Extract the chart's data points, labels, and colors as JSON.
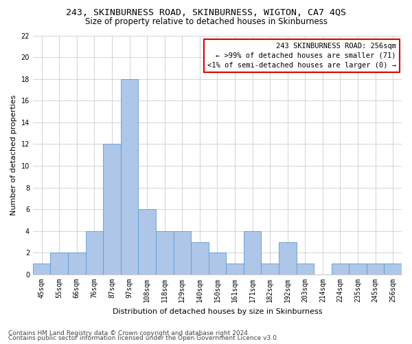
{
  "title": "243, SKINBURNESS ROAD, SKINBURNESS, WIGTON, CA7 4QS",
  "subtitle": "Size of property relative to detached houses in Skinburness",
  "xlabel": "Distribution of detached houses by size in Skinburness",
  "ylabel": "Number of detached properties",
  "categories": [
    "45sqm",
    "55sqm",
    "66sqm",
    "76sqm",
    "87sqm",
    "97sqm",
    "108sqm",
    "118sqm",
    "129sqm",
    "140sqm",
    "150sqm",
    "161sqm",
    "171sqm",
    "182sqm",
    "192sqm",
    "203sqm",
    "214sqm",
    "224sqm",
    "235sqm",
    "245sqm",
    "256sqm"
  ],
  "values": [
    1,
    2,
    2,
    4,
    12,
    18,
    6,
    4,
    4,
    3,
    2,
    1,
    4,
    1,
    3,
    1,
    0,
    1,
    1,
    1,
    1
  ],
  "bar_color": "#aec6e8",
  "bar_edge_color": "#5b9bd5",
  "annotation_line1": "243 SKINBURNESS ROAD: 256sqm",
  "annotation_line2": "← >99% of detached houses are smaller (71)",
  "annotation_line3": "<1% of semi-detached houses are larger (0) →",
  "annotation_box_color": "#dd0000",
  "footer1": "Contains HM Land Registry data © Crown copyright and database right 2024.",
  "footer2": "Contains public sector information licensed under the Open Government Licence v3.0.",
  "ylim": [
    0,
    22
  ],
  "yticks": [
    0,
    2,
    4,
    6,
    8,
    10,
    12,
    14,
    16,
    18,
    20,
    22
  ],
  "background_color": "#ffffff",
  "grid_color": "#cccccc",
  "title_fontsize": 9.5,
  "subtitle_fontsize": 8.5,
  "axis_label_fontsize": 8,
  "tick_fontsize": 7,
  "footer_fontsize": 6.5,
  "annotation_fontsize": 7.5
}
